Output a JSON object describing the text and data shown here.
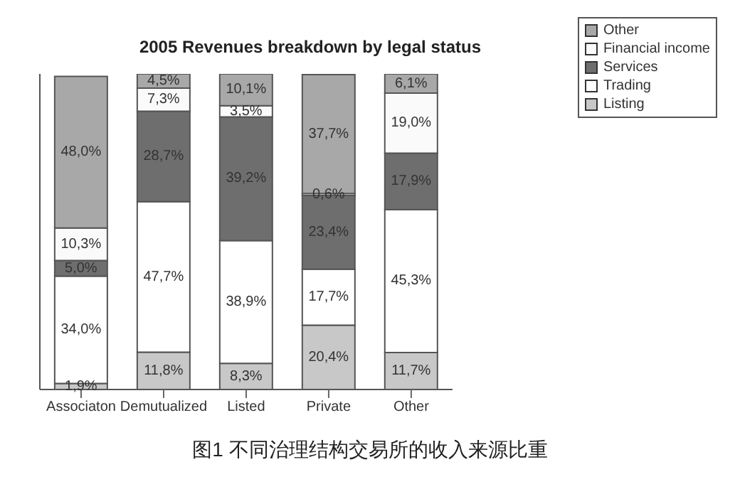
{
  "chart_data": {
    "type": "bar",
    "title": "2005 Revenues breakdown by legal status",
    "stacked": true,
    "categories": [
      "Associaton",
      "Demutualized",
      "Listed",
      "Private",
      "Other"
    ],
    "series": [
      {
        "name": "Listing",
        "color": "#c8c8c8",
        "values": [
          1.9,
          11.8,
          8.3,
          20.4,
          11.7
        ],
        "value_labels": [
          "1,9%",
          "11,8%",
          "8,3%",
          "20,4%",
          "11,7%"
        ]
      },
      {
        "name": "Trading",
        "color": "#ffffff",
        "values": [
          34.0,
          47.7,
          38.9,
          17.7,
          45.3
        ],
        "value_labels": [
          "34,0%",
          "47,7%",
          "38,9%",
          "17,7%",
          "45,3%"
        ]
      },
      {
        "name": "Services",
        "color": "#6e6e6e",
        "values": [
          5.0,
          28.7,
          39.2,
          23.4,
          17.9
        ],
        "value_labels": [
          "5,0%",
          "28,7%",
          "39,2%",
          "23,4%",
          "17,9%"
        ]
      },
      {
        "name": "Financial income",
        "color": "#fafafa",
        "values": [
          10.3,
          7.3,
          3.5,
          0.6,
          19.0
        ],
        "value_labels": [
          "10,3%",
          "7,3%",
          "3,5%",
          "0,6%",
          "19,0%"
        ]
      },
      {
        "name": "Other",
        "color": "#a8a8a8",
        "values": [
          48.0,
          4.5,
          10.1,
          37.7,
          6.1
        ],
        "value_labels": [
          "48,0%",
          "4,5%",
          "10,1%",
          "37,7%",
          "6,1%"
        ]
      }
    ],
    "ylim": [
      0,
      100
    ],
    "tick_labels": "x",
    "legend": "top right",
    "annotations": [
      "图1 不同治理结构交易所的收入来源比重"
    ]
  }
}
